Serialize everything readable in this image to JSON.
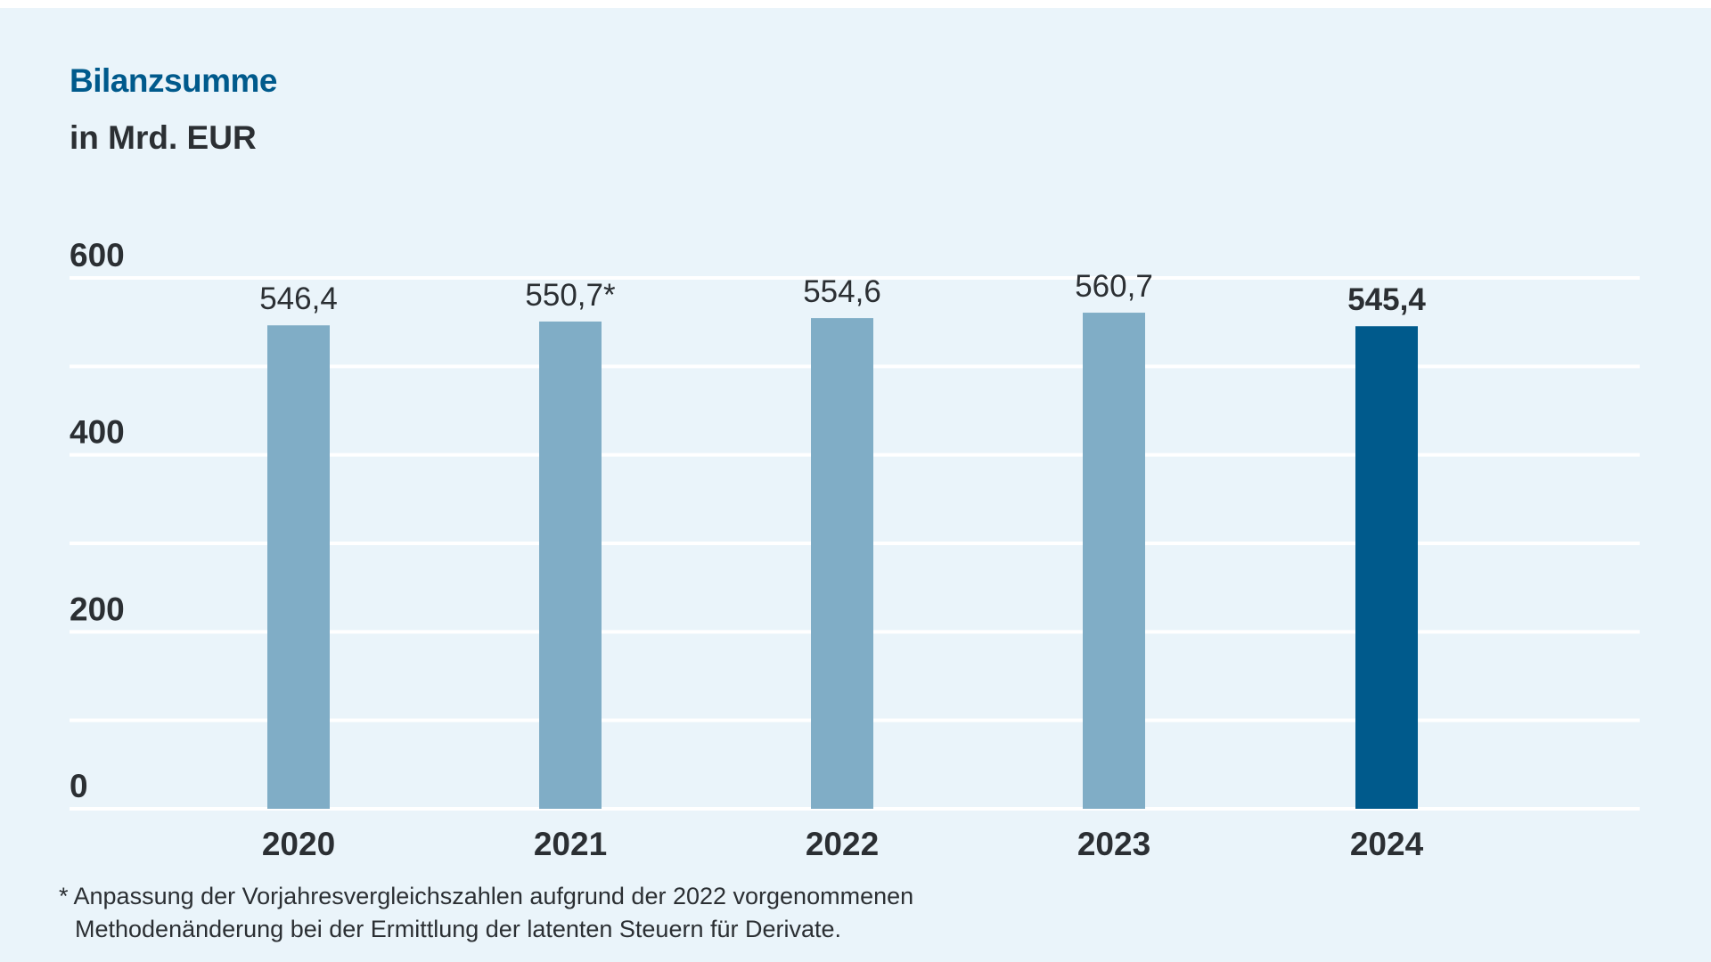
{
  "colors": {
    "title": "#005a8c",
    "text": "#2b2f33",
    "bar_default": "#80adc6",
    "bar_highlight": "#005a8c",
    "gridline": "#ffffff",
    "background": "#eaf4fa"
  },
  "chart_data": {
    "type": "bar",
    "title": "Bilanzsumme",
    "subtitle": "in Mrd. EUR",
    "categories": [
      "2020",
      "2021",
      "2022",
      "2023",
      "2024"
    ],
    "values": [
      546.4,
      550.7,
      554.6,
      560.7,
      545.4
    ],
    "value_labels": [
      "546,4",
      "550,7*",
      "554,6",
      "560,7",
      "545,4"
    ],
    "highlight_category": "2024",
    "ylim": [
      0,
      600
    ],
    "y_ticks": [
      {
        "value": 0,
        "label": "0"
      },
      {
        "value": 200,
        "label": "200"
      },
      {
        "value": 400,
        "label": "400"
      },
      {
        "value": 600,
        "label": "600"
      }
    ],
    "gridline_values": [
      0,
      100,
      200,
      300,
      400,
      500,
      600
    ],
    "grid": true
  },
  "footnote": {
    "line1": "* Anpassung der Vorjahresvergleichszahlen aufgrund der 2022 vorgenommenen",
    "line2": "Methodenänderung bei der Ermittlung der latenten Steuern für Derivate."
  }
}
